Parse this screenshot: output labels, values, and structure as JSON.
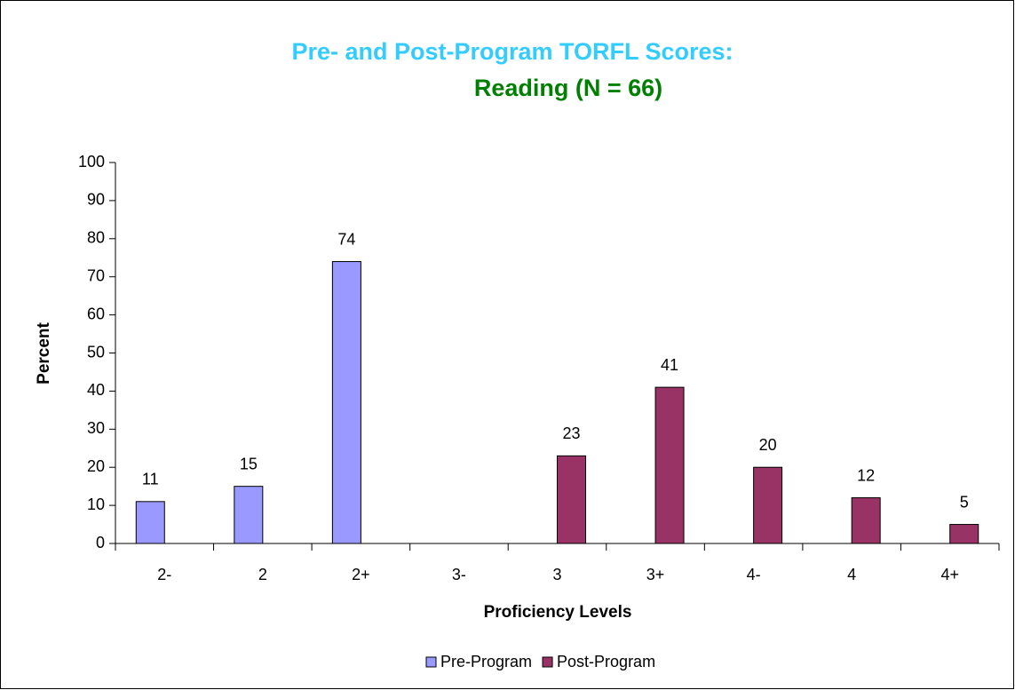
{
  "chart_data": {
    "type": "bar",
    "title": "Pre- and Post-Program TORFL Scores:",
    "subtitle": "Reading (N = 66)",
    "x_label": "Proficiency Levels",
    "y_label": "Percent",
    "categories": [
      "2-",
      "2",
      "2+",
      "3-",
      "3",
      "3+",
      "4-",
      "4",
      "4+"
    ],
    "series": [
      {
        "name": "Pre-Program",
        "color": "#9999ff",
        "values": [
          11,
          15,
          74,
          null,
          null,
          null,
          null,
          null,
          null
        ]
      },
      {
        "name": "Post-Program",
        "color": "#993366",
        "values": [
          null,
          null,
          null,
          null,
          23,
          41,
          20,
          12,
          5
        ]
      }
    ],
    "ylim": [
      0,
      100
    ],
    "yticks": [
      0,
      10,
      20,
      30,
      40,
      50,
      60,
      70,
      80,
      90,
      100
    ],
    "grid": false,
    "legend": "bottom"
  }
}
